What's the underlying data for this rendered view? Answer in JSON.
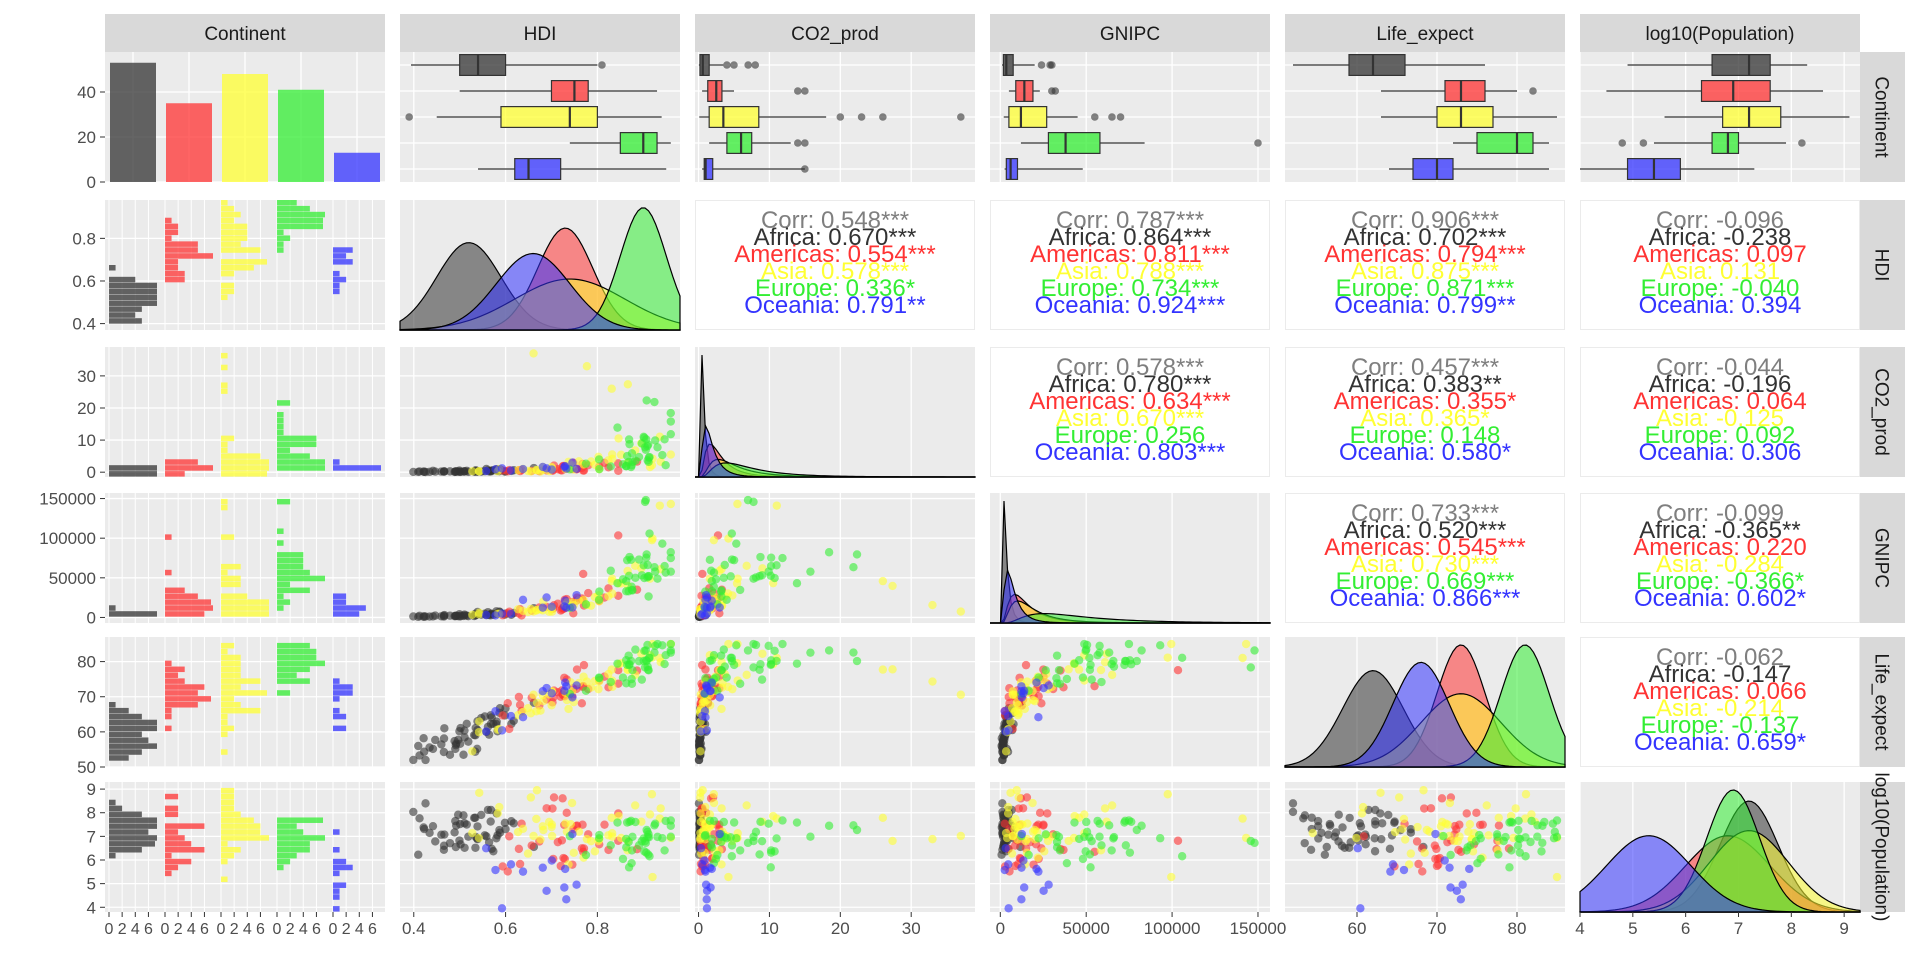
{
  "columns": [
    "Continent",
    "HDI",
    "CO2_prod",
    "GNIPC",
    "Life_expect",
    "log10(Population)"
  ],
  "rows": [
    "Continent",
    "HDI",
    "CO2_prod",
    "GNIPC",
    "Life_expect",
    "log10(Population)"
  ],
  "continents": [
    "Africa",
    "Americas",
    "Asia",
    "Europe",
    "Oceania"
  ],
  "colors": {
    "Africa": "#333333",
    "Americas": "#ff3333",
    "Asia": "#ffff33",
    "Europe": "#33ee33",
    "Oceania": "#3333ff",
    "panel_bg": "#ebebeb",
    "strip_bg": "#d9d9d9",
    "corr_overall": "#7f7f7f"
  },
  "chart_data": [
    {
      "type": "bar",
      "panel": "Continent x Continent",
      "categories": [
        "Africa",
        "Americas",
        "Asia",
        "Europe",
        "Oceania"
      ],
      "values": [
        53,
        35,
        48,
        41,
        13
      ],
      "ylim": [
        0,
        56
      ],
      "yticks": [
        0,
        20,
        40
      ]
    },
    {
      "type": "boxplot",
      "panel": "row Continent",
      "order": [
        "Africa",
        "Americas",
        "Asia",
        "Europe",
        "Oceania"
      ],
      "boxes": {
        "HDI": [
          [
            0.394,
            0.5,
            0.54,
            0.6,
            0.8
          ],
          [
            0.5,
            0.7,
            0.75,
            0.78,
            0.93
          ],
          [
            0.45,
            0.59,
            0.74,
            0.8,
            0.94
          ],
          [
            0.74,
            0.85,
            0.9,
            0.93,
            0.96
          ],
          [
            0.54,
            0.62,
            0.65,
            0.72,
            0.95
          ]
        ],
        "CO2_prod": [
          [
            0.05,
            0.2,
            0.6,
            1.5,
            3.5
          ],
          [
            0.5,
            1.3,
            2.5,
            3.3,
            5.0
          ],
          [
            0.1,
            1.5,
            3.5,
            8.5,
            18
          ],
          [
            1.5,
            4.0,
            6.0,
            7.5,
            13
          ],
          [
            0.5,
            0.8,
            1.0,
            2.0,
            15
          ]
        ],
        "GNIPC": [
          [
            1000,
            1800,
            3500,
            7500,
            20000
          ],
          [
            5000,
            9000,
            14000,
            19000,
            23000
          ],
          [
            2000,
            5000,
            12000,
            27000,
            45000
          ],
          [
            12000,
            28000,
            38000,
            58000,
            84000
          ],
          [
            2500,
            3500,
            6000,
            10000,
            48000
          ]
        ],
        "Life_expect": [
          [
            52,
            59,
            62,
            66,
            76
          ],
          [
            63,
            71,
            73,
            76,
            80
          ],
          [
            63,
            70,
            73,
            77,
            85
          ],
          [
            72,
            75,
            80,
            82,
            84
          ],
          [
            64,
            67,
            70,
            72,
            84
          ]
        ],
        "log10(Population)": [
          [
            4.9,
            6.5,
            7.2,
            7.6,
            8.3
          ],
          [
            4.5,
            6.3,
            6.9,
            7.6,
            8.6
          ],
          [
            5.6,
            6.7,
            7.2,
            7.8,
            9.1
          ],
          [
            5.4,
            6.5,
            6.8,
            7.0,
            7.9
          ],
          [
            4.0,
            4.9,
            5.4,
            5.9,
            7.3
          ]
        ]
      },
      "outliers": {
        "HDI": [
          [
            0.81
          ],
          [],
          [
            0.39
          ],
          [],
          []
        ],
        "CO2_prod": [
          [
            4,
            5,
            7,
            8
          ],
          [
            14,
            15
          ],
          [
            20,
            23,
            26,
            37
          ],
          [
            14,
            15
          ],
          [
            15
          ]
        ],
        "GNIPC": [
          [
            24000,
            29000,
            30000
          ],
          [
            30000,
            32000
          ],
          [
            55000,
            65000,
            70000
          ],
          [
            150000
          ],
          []
        ],
        "Life_expect": [
          [],
          [
            82
          ],
          [],
          [],
          []
        ],
        "log10(Population)": [
          [],
          [],
          [],
          [
            4.8,
            5.2,
            8.2
          ],
          []
        ]
      }
    },
    {
      "type": "histogram",
      "panel": "column Continent",
      "xticks": [
        0,
        2,
        4,
        6
      ],
      "note": "faceted histograms by continent for each numeric variable"
    },
    {
      "type": "area",
      "panel": "diagonal density",
      "variables": [
        "HDI",
        "CO2_prod",
        "GNIPC",
        "Life_expect",
        "log10(Population)"
      ],
      "densities": {
        "HDI": [
          [
            0.52,
            0.07
          ],
          [
            0.73,
            0.06
          ],
          [
            0.74,
            0.12
          ],
          [
            0.9,
            0.05
          ],
          [
            0.66,
            0.08
          ]
        ],
        "CO2_prod": [
          [
            0.5,
            0.8
          ],
          [
            2.5,
            1.5
          ],
          [
            4.0,
            6.0
          ],
          [
            6.0,
            3.0
          ],
          [
            1.5,
            1.5
          ]
        ],
        "GNIPC": [
          [
            2500,
            3000
          ],
          [
            13000,
            6000
          ],
          [
            15000,
            16000
          ],
          [
            40000,
            17000
          ],
          [
            6000,
            8000
          ]
        ],
        "Life_expect": [
          [
            62,
            3.8
          ],
          [
            73,
            3.0
          ],
          [
            73,
            5.0
          ],
          [
            81,
            3.0
          ],
          [
            68,
            3.5
          ]
        ],
        "log10(Population)": [
          [
            7.2,
            0.55
          ],
          [
            6.8,
            0.8
          ],
          [
            7.2,
            0.75
          ],
          [
            6.9,
            0.5
          ],
          [
            5.3,
            0.8
          ]
        ]
      }
    },
    {
      "type": "scatter",
      "panel": "lower triangle",
      "note": "pairwise scatter colored by continent"
    },
    {
      "type": "table",
      "panel": "upper triangle correlations",
      "pairs": [
        {
          "row": "HDI",
          "col": "CO2_prod",
          "values": [
            "Corr: 0.548***",
            "Africa: 0.670***",
            "Americas: 0.554***",
            "Asia: 0.578***",
            "Europe: 0.336*",
            "Oceania: 0.791**"
          ]
        },
        {
          "row": "HDI",
          "col": "GNIPC",
          "values": [
            "Corr: 0.787***",
            "Africa: 0.864***",
            "Americas: 0.811***",
            "Asia: 0.788***",
            "Europe: 0.734***",
            "Oceania: 0.924***"
          ]
        },
        {
          "row": "HDI",
          "col": "Life_expect",
          "values": [
            "Corr: 0.906***",
            "Africa: 0.702***",
            "Americas: 0.794***",
            "Asia: 0.875***",
            "Europe: 0.871***",
            "Oceania: 0.799**"
          ]
        },
        {
          "row": "HDI",
          "col": "log10(Population)",
          "values": [
            "Corr: -0.096",
            "Africa: -0.238",
            "Americas: 0.097",
            "Asia: 0.131",
            "Europe: -0.040",
            "Oceania: 0.394"
          ]
        },
        {
          "row": "CO2_prod",
          "col": "GNIPC",
          "values": [
            "Corr: 0.578***",
            "Africa: 0.780***",
            "Americas: 0.634***",
            "Asia: 0.670***",
            "Europe: 0.256",
            "Oceania: 0.803***"
          ]
        },
        {
          "row": "CO2_prod",
          "col": "Life_expect",
          "values": [
            "Corr: 0.457***",
            "Africa: 0.383**",
            "Americas: 0.355*",
            "Asia: 0.365*",
            "Europe: 0.148",
            "Oceania: 0.580*"
          ]
        },
        {
          "row": "CO2_prod",
          "col": "log10(Population)",
          "values": [
            "Corr: -0.044",
            "Africa: -0.196",
            "Americas: 0.064",
            "Asia: -0.125",
            "Europe: 0.092",
            "Oceania: 0.306"
          ]
        },
        {
          "row": "GNIPC",
          "col": "Life_expect",
          "values": [
            "Corr: 0.733***",
            "Africa: 0.520***",
            "Americas: 0.545***",
            "Asia: 0.730***",
            "Europe: 0.669***",
            "Oceania: 0.866***"
          ]
        },
        {
          "row": "GNIPC",
          "col": "log10(Population)",
          "values": [
            "Corr: -0.099",
            "Africa: -0.365**",
            "Americas: 0.220",
            "Asia: -0.284",
            "Europe: -0.366*",
            "Oceania: 0.602*"
          ]
        },
        {
          "row": "Life_expect",
          "col": "log10(Population)",
          "values": [
            "Corr: -0.062",
            "Africa: -0.147",
            "Americas: 0.066",
            "Asia: -0.214",
            "Europe: -0.137",
            "Oceania: 0.659*"
          ]
        }
      ]
    }
  ],
  "axes": {
    "x": {
      "Continent": {
        "ticks": [
          "0",
          "2",
          "4",
          "6"
        ]
      },
      "HDI": {
        "range": [
          0.37,
          0.98
        ],
        "ticks": [
          0.4,
          0.6,
          0.8
        ],
        "labels": [
          "0.4",
          "0.6",
          "0.8"
        ]
      },
      "CO2_prod": {
        "range": [
          -0.5,
          39
        ],
        "ticks": [
          0,
          10,
          20,
          30
        ],
        "labels": [
          "0",
          "10",
          "20",
          "30"
        ]
      },
      "GNIPC": {
        "range": [
          -6000,
          157000
        ],
        "ticks": [
          0,
          50000,
          100000,
          150000
        ],
        "labels": [
          "0",
          "50000",
          "100000",
          "150000"
        ]
      },
      "Life_expect": {
        "range": [
          51,
          86
        ],
        "ticks": [
          60,
          70,
          80
        ],
        "labels": [
          "60",
          "70",
          "80"
        ]
      },
      "log10(Population)": {
        "range": [
          4.0,
          9.3
        ],
        "ticks": [
          4,
          5,
          6,
          7,
          8,
          9
        ],
        "labels": [
          "4",
          "5",
          "6",
          "7",
          "8",
          "9"
        ]
      }
    },
    "y": {
      "Continent": {
        "ticks": [
          0,
          20,
          40
        ],
        "labels": [
          "0",
          "20",
          "40"
        ]
      },
      "HDI": {
        "range": [
          0.37,
          0.98
        ],
        "ticks": [
          0.4,
          0.6,
          0.8
        ],
        "labels": [
          "0.4",
          "0.6",
          "0.8"
        ]
      },
      "CO2_prod": {
        "range": [
          -1.5,
          39
        ],
        "ticks": [
          0,
          10,
          20,
          30
        ],
        "labels": [
          "0",
          "10",
          "20",
          "30"
        ]
      },
      "GNIPC": {
        "range": [
          -7000,
          157000
        ],
        "ticks": [
          0,
          50000,
          100000,
          150000
        ],
        "labels": [
          "0",
          "50000",
          "100000",
          "150000"
        ]
      },
      "Life_expect": {
        "range": [
          50,
          87
        ],
        "ticks": [
          50,
          60,
          70,
          80
        ],
        "labels": [
          "50",
          "60",
          "70",
          "80"
        ]
      },
      "log10(Population)": {
        "range": [
          3.8,
          9.3
        ],
        "ticks": [
          4,
          5,
          6,
          7,
          8,
          9
        ],
        "labels": [
          "4",
          "5",
          "6",
          "7",
          "8",
          "9"
        ]
      }
    }
  }
}
